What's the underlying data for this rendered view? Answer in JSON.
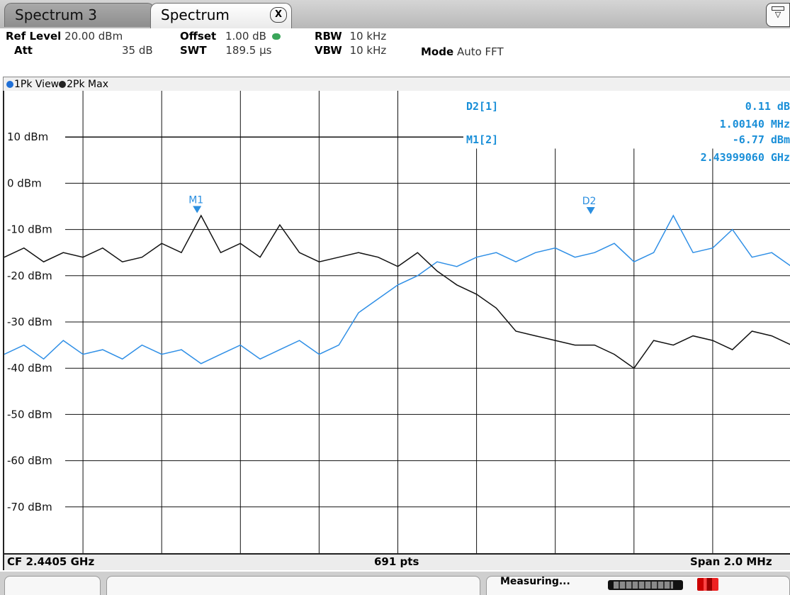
{
  "tabs": [
    {
      "label": "Spectrum 3",
      "active": false
    },
    {
      "label": "Spectrum",
      "active": true
    }
  ],
  "tab_close_label": "X",
  "settings": {
    "ref_level_label": "Ref Level",
    "ref_level_value": "20.00 dBm",
    "offset_label": "Offset",
    "offset_value": "1.00 dB",
    "rbw_label": "RBW",
    "rbw_value": "10 kHz",
    "att_label": "Att",
    "att_value": "35 dB",
    "swt_label": "SWT",
    "swt_value": "189.5 µs",
    "vbw_label": "VBW",
    "vbw_value": "10 kHz",
    "mode_label": "Mode",
    "mode_value": "Auto FFT"
  },
  "traces": [
    {
      "label": "1Pk View",
      "color": "#1f6fd6"
    },
    {
      "label": "2Pk Max",
      "color": "#222222"
    }
  ],
  "markers_readout": {
    "d2_label": "D2[1]",
    "d2_level": "0.11 dB",
    "d2_freq": "1.00140 MHz",
    "m1_label": "M1[2]",
    "m1_level": "-6.77 dBm",
    "m1_freq": "2.43999060 GHz"
  },
  "footer": {
    "cf": "CF 2.4405 GHz",
    "points": "691 pts",
    "span": "Span 2.0 MHz"
  },
  "status": {
    "measuring": "Measuring..."
  },
  "colors": {
    "trace1": "#2f8fe6",
    "trace2": "#111111",
    "marker_text": "#1a8fd8"
  },
  "chart_data": {
    "type": "line",
    "ylabel_ticks": [
      "10 dBm",
      "0 dBm",
      "-10 dBm",
      "-20 dBm",
      "-30 dBm",
      "-40 dBm",
      "-50 dBm",
      "-60 dBm",
      "-70 dBm"
    ],
    "ylim": [
      -80,
      20
    ],
    "xlim": [
      2.4395,
      2.4415
    ],
    "x_unit": "GHz",
    "grid": true,
    "reference_line": {
      "level": 10,
      "label": "10 dBm"
    },
    "markers": [
      {
        "name": "M1",
        "trace": 2,
        "x": 2.43999,
        "y": -6.77
      },
      {
        "name": "D2",
        "trace": 1,
        "x": 2.44099,
        "y": -7.0
      }
    ],
    "series": [
      {
        "name": "1Pk View",
        "color": "#2f8fe6",
        "x": [
          2.4395,
          2.43955,
          2.4396,
          2.43965,
          2.4397,
          2.43975,
          2.4398,
          2.43985,
          2.4399,
          2.43995,
          2.44,
          2.44005,
          2.4401,
          2.44015,
          2.4402,
          2.44025,
          2.4403,
          2.44035,
          2.4404,
          2.44045,
          2.4405,
          2.44055,
          2.4406,
          2.44065,
          2.4407,
          2.44075,
          2.4408,
          2.44085,
          2.4409,
          2.44095,
          2.441,
          2.44105,
          2.4411,
          2.44115,
          2.4412,
          2.44125,
          2.4413,
          2.44135,
          2.4414,
          2.44145,
          2.4415
        ],
        "y": [
          -37,
          -35,
          -38,
          -34,
          -37,
          -36,
          -38,
          -35,
          -37,
          -36,
          -39,
          -37,
          -35,
          -38,
          -36,
          -34,
          -37,
          -35,
          -28,
          -25,
          -22,
          -20,
          -17,
          -18,
          -16,
          -15,
          -17,
          -15,
          -14,
          -16,
          -15,
          -13,
          -17,
          -15,
          -7,
          -15,
          -14,
          -10,
          -16,
          -15,
          -18
        ]
      },
      {
        "name": "2Pk Max",
        "color": "#111111",
        "x": [
          2.4395,
          2.43955,
          2.4396,
          2.43965,
          2.4397,
          2.43975,
          2.4398,
          2.43985,
          2.4399,
          2.43995,
          2.44,
          2.44005,
          2.4401,
          2.44015,
          2.4402,
          2.44025,
          2.4403,
          2.44035,
          2.4404,
          2.44045,
          2.4405,
          2.44055,
          2.4406,
          2.44065,
          2.4407,
          2.44075,
          2.4408,
          2.44085,
          2.4409,
          2.44095,
          2.441,
          2.44105,
          2.4411,
          2.44115,
          2.4412,
          2.44125,
          2.4413,
          2.44135,
          2.4414,
          2.44145,
          2.4415
        ],
        "y": [
          -16,
          -14,
          -17,
          -15,
          -16,
          -14,
          -17,
          -16,
          -13,
          -15,
          -7,
          -15,
          -13,
          -16,
          -9,
          -15,
          -17,
          -16,
          -15,
          -16,
          -18,
          -15,
          -19,
          -22,
          -24,
          -27,
          -32,
          -33,
          -34,
          -35,
          -35,
          -37,
          -40,
          -34,
          -35,
          -33,
          -34,
          -36,
          -32,
          -33,
          -35
        ]
      }
    ]
  }
}
